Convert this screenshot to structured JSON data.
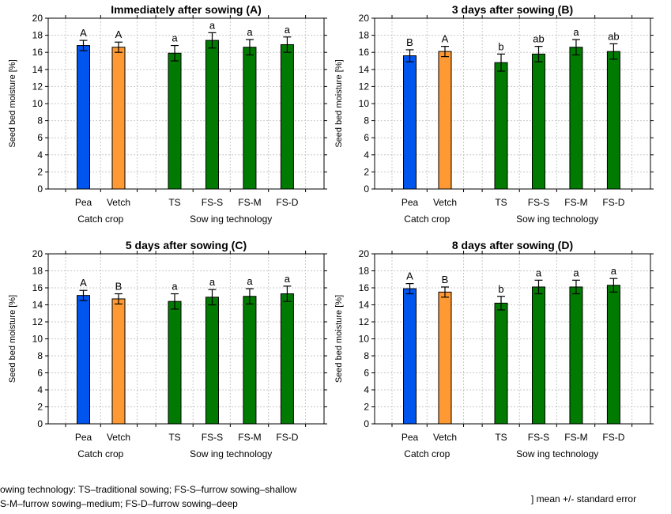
{
  "chart_data": [
    {
      "type": "bar",
      "title": "Immediately after sowing (A)",
      "ylabel": "Seed bed moisture [%]",
      "ylim": [
        0,
        20
      ],
      "yticks": [
        0,
        2,
        4,
        6,
        8,
        10,
        12,
        14,
        16,
        18,
        20
      ],
      "grid": true,
      "categories": [
        "Pea",
        "Vetch",
        "TS",
        "FS-S",
        "FS-M",
        "FS-D"
      ],
      "values": [
        16.8,
        16.6,
        15.9,
        17.4,
        16.6,
        16.9
      ],
      "errors": [
        0.6,
        0.6,
        0.9,
        0.9,
        0.9,
        0.9
      ],
      "letters": [
        "A",
        "A",
        "a",
        "a",
        "a",
        "a"
      ],
      "groups": [
        "Catch crop",
        "Sow ing technology"
      ]
    },
    {
      "type": "bar",
      "title": "3 days after sowing (B)",
      "ylabel": "Seed bed moisture [%]",
      "ylim": [
        0,
        20
      ],
      "yticks": [
        0,
        2,
        4,
        6,
        8,
        10,
        12,
        14,
        16,
        18,
        20
      ],
      "grid": true,
      "categories": [
        "Pea",
        "Vetch",
        "TS",
        "FS-S",
        "FS-M",
        "FS-D"
      ],
      "values": [
        15.6,
        16.1,
        14.8,
        15.8,
        16.6,
        16.1
      ],
      "errors": [
        0.7,
        0.6,
        1.0,
        0.9,
        0.9,
        0.9
      ],
      "letters": [
        "B",
        "A",
        "b",
        "ab",
        "a",
        "ab"
      ],
      "groups": [
        "Catch crop",
        "Sow ing technology"
      ]
    },
    {
      "type": "bar",
      "title": "5 days after sowing (C)",
      "ylabel": "Seed bed moisture [%]",
      "ylim": [
        0,
        20
      ],
      "yticks": [
        0,
        2,
        4,
        6,
        8,
        10,
        12,
        14,
        16,
        18,
        20
      ],
      "grid": true,
      "categories": [
        "Pea",
        "Vetch",
        "TS",
        "FS-S",
        "FS-M",
        "FS-D"
      ],
      "values": [
        15.1,
        14.7,
        14.4,
        14.9,
        15.0,
        15.3
      ],
      "errors": [
        0.6,
        0.6,
        0.9,
        0.9,
        0.9,
        0.9
      ],
      "letters": [
        "A",
        "B",
        "a",
        "a",
        "a",
        "a"
      ],
      "groups": [
        "Catch crop",
        "Sow ing technology"
      ]
    },
    {
      "type": "bar",
      "title": "8 days after sowing (D)",
      "ylabel": "Seed bed moisture [%]",
      "ylim": [
        0,
        20
      ],
      "yticks": [
        0,
        2,
        4,
        6,
        8,
        10,
        12,
        14,
        16,
        18,
        20
      ],
      "grid": true,
      "categories": [
        "Pea",
        "Vetch",
        "TS",
        "FS-S",
        "FS-M",
        "FS-D"
      ],
      "values": [
        15.9,
        15.5,
        14.2,
        16.1,
        16.1,
        16.3
      ],
      "errors": [
        0.6,
        0.6,
        0.8,
        0.8,
        0.8,
        0.8
      ],
      "letters": [
        "A",
        "B",
        "b",
        "a",
        "a",
        "a"
      ],
      "groups": [
        "Catch crop",
        "Sow ing technology"
      ]
    }
  ],
  "colors": {
    "pea": "#0055ee",
    "vetch": "#ff9933",
    "technology": "#007a00",
    "grid": "#c8c8c8"
  },
  "footnote": {
    "line1": "owing technology: TS–traditional sowing; FS-S–furrow sowing–shallow",
    "line2": "S-M–furrow sowing–medium; FS-D–furrow sowing–deep",
    "legend": "] mean +/- standard error"
  }
}
